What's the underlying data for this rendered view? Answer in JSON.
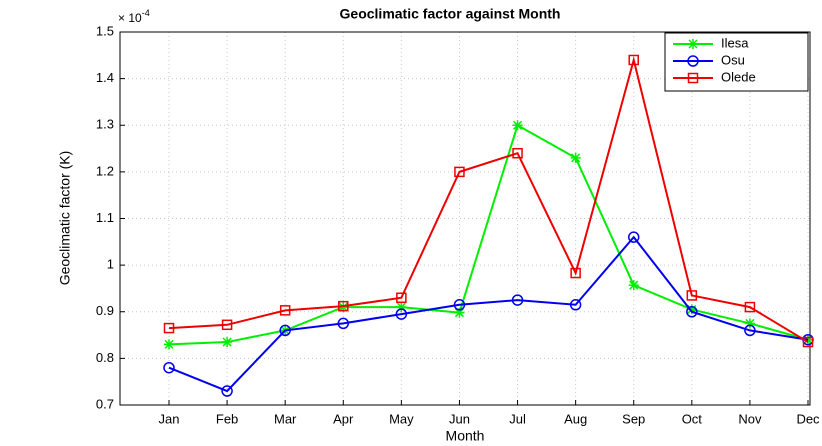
{
  "chart_data": {
    "type": "line",
    "title": "Geoclimatic factor against Month",
    "x_label": "Month",
    "y_label": "Geoclimatic factor (K)",
    "y_scale_base": "× 10",
    "y_scale_exponent": "-4",
    "categories": [
      "Jan",
      "Feb",
      "Mar",
      "Apr",
      "May",
      "Jun",
      "Jul",
      "Aug",
      "Sep",
      "Oct",
      "Nov",
      "Dec"
    ],
    "series": [
      {
        "name": "Ilesa",
        "color": "#00ee00",
        "marker": "star",
        "values": [
          0.83,
          0.835,
          0.86,
          0.91,
          0.91,
          0.898,
          1.3,
          1.23,
          0.957,
          0.905,
          0.875,
          0.84
        ]
      },
      {
        "name": "Osu",
        "color": "#0000ee",
        "marker": "circle",
        "values": [
          0.78,
          0.73,
          0.86,
          0.875,
          0.895,
          0.915,
          0.925,
          0.915,
          1.06,
          0.9,
          0.86,
          0.84
        ]
      },
      {
        "name": "Olede",
        "color": "#ee0000",
        "marker": "square",
        "values": [
          0.865,
          0.872,
          0.903,
          0.912,
          0.93,
          1.2,
          1.24,
          0.983,
          1.44,
          0.935,
          0.91,
          0.835
        ]
      }
    ],
    "ylim": [
      0.7,
      1.5
    ],
    "yticks": [
      0.7,
      0.8,
      0.9,
      1,
      1.1,
      1.2,
      1.3,
      1.4,
      1.5
    ],
    "grid": true,
    "legend": "northeast"
  }
}
